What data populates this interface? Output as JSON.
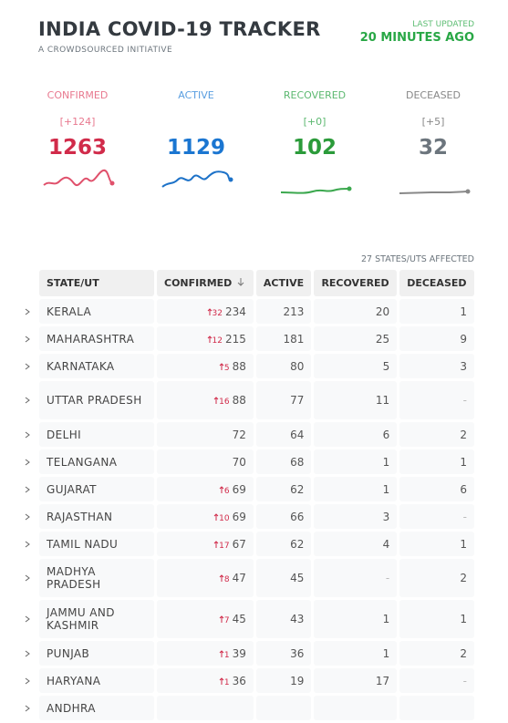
{
  "header": {
    "title": "INDIA COVID-19 TRACKER",
    "subtitle": "A CROWDSOURCED INITIATIVE",
    "updated_label": "LAST UPDATED",
    "updated_value": "20 MINUTES AGO"
  },
  "summary": [
    {
      "label": "CONFIRMED",
      "delta": "[+124]",
      "value": 1263
    },
    {
      "label": "ACTIVE",
      "value": 1129
    },
    {
      "label": "RECOVERED",
      "delta": "[+0]",
      "value": 102
    },
    {
      "label": "DECEASED",
      "delta": "[+5]",
      "value": 32
    }
  ],
  "affected": "27 STATES/UTS AFFECTED",
  "table": {
    "columns": [
      "STATE/UT",
      "CONFIRMED",
      "ACTIVE",
      "RECOVERED",
      "DECEASED"
    ],
    "rows": [
      {
        "state": "KERALA",
        "delta": 32,
        "confirmed": 234,
        "active": 213,
        "recovered": 20,
        "deceased": 1
      },
      {
        "state": "MAHARASHTRA",
        "delta": 12,
        "confirmed": 215,
        "active": 181,
        "recovered": 25,
        "deceased": 9
      },
      {
        "state": "KARNATAKA",
        "delta": 5,
        "confirmed": 88,
        "active": 80,
        "recovered": 5,
        "deceased": 3
      },
      {
        "state": "UTTAR PRADESH",
        "delta": 16,
        "confirmed": 88,
        "active": 77,
        "recovered": 11,
        "deceased": "-"
      },
      {
        "state": "DELHI",
        "confirmed": 72,
        "active": 64,
        "recovered": 6,
        "deceased": 2
      },
      {
        "state": "TELANGANA",
        "confirmed": 70,
        "active": 68,
        "recovered": 1,
        "deceased": 1
      },
      {
        "state": "GUJARAT",
        "delta": 6,
        "confirmed": 69,
        "active": 62,
        "recovered": 1,
        "deceased": 6
      },
      {
        "state": "RAJASTHAN",
        "delta": 10,
        "confirmed": 69,
        "active": 66,
        "recovered": 3,
        "deceased": "-"
      },
      {
        "state": "TAMIL NADU",
        "delta": 17,
        "confirmed": 67,
        "active": 62,
        "recovered": 4,
        "deceased": 1
      },
      {
        "state": "MADHYA PRADESH",
        "delta": 8,
        "confirmed": 47,
        "active": 45,
        "recovered": "-",
        "deceased": 2
      },
      {
        "state": "JAMMU AND KASHMIR",
        "delta": 7,
        "confirmed": 45,
        "active": 43,
        "recovered": 1,
        "deceased": 1
      },
      {
        "state": "PUNJAB",
        "delta": 1,
        "confirmed": 39,
        "active": 36,
        "recovered": 1,
        "deceased": 2
      },
      {
        "state": "HARYANA",
        "delta": 1,
        "confirmed": 36,
        "active": 19,
        "recovered": 17,
        "deceased": "-"
      },
      {
        "state": "ANDHRA"
      }
    ]
  }
}
